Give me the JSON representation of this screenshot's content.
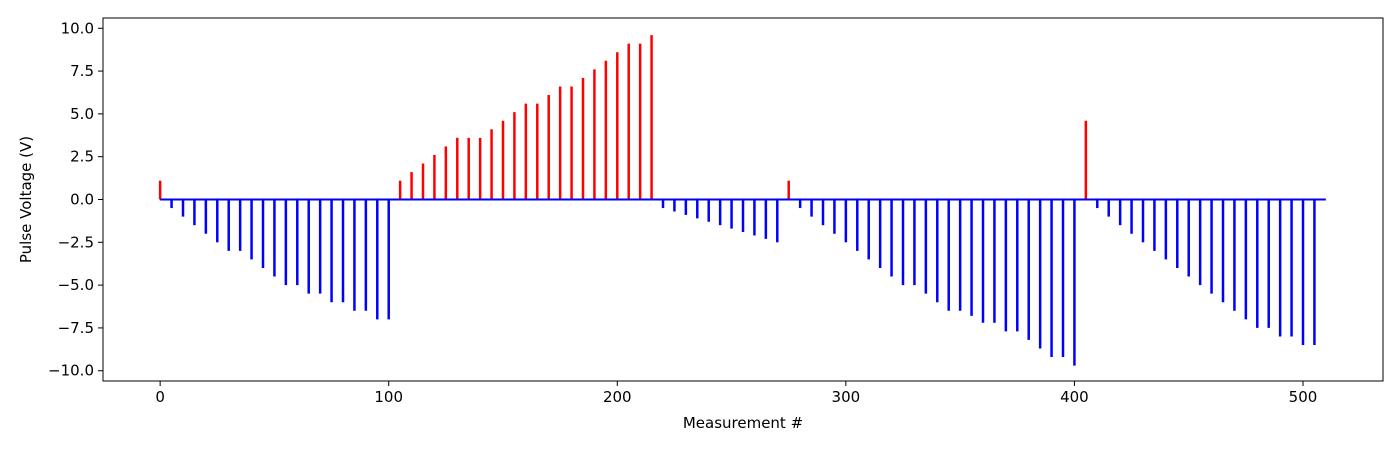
{
  "chart_data": {
    "type": "bar",
    "title": "",
    "xlabel": "Measurement #",
    "ylabel": "Pulse Voltage (V)",
    "xlim": [
      -25,
      535
    ],
    "ylim": [
      -10.6,
      10.6
    ],
    "xticks": [
      0,
      100,
      200,
      300,
      400,
      500
    ],
    "xtick_labels": [
      "0",
      "100",
      "200",
      "300",
      "400",
      "500"
    ],
    "yticks": [
      10.0,
      7.5,
      5.0,
      2.5,
      0.0,
      -2.5,
      -5.0,
      -7.5,
      -10.0
    ],
    "ytick_labels": [
      "10.0",
      "7.5",
      "5.0",
      "2.5",
      "0.0",
      "−2.5",
      "−5.0",
      "−7.5",
      "−10.0"
    ],
    "grid": false,
    "legend": "none",
    "baseline": {
      "from": 0,
      "to": 510,
      "color": "#0000ff"
    },
    "colors": {
      "positive": "#ff0000",
      "negative": "#0000ff"
    },
    "series": [
      {
        "color": "#ff0000",
        "x": [
          0,
          105,
          110,
          115,
          120,
          125,
          130,
          135,
          140,
          145,
          150,
          155,
          160,
          165,
          170,
          175,
          180,
          185,
          190,
          195,
          200,
          205,
          210,
          215,
          275,
          405
        ],
        "values": [
          1.1,
          1.1,
          1.6,
          2.1,
          2.6,
          3.1,
          3.6,
          3.6,
          3.6,
          4.1,
          4.6,
          5.1,
          5.6,
          5.6,
          6.1,
          6.6,
          6.6,
          7.1,
          7.6,
          8.1,
          8.6,
          9.1,
          9.1,
          9.6,
          1.1,
          4.6
        ]
      },
      {
        "color": "#0000ff",
        "x": [
          5,
          10,
          15,
          20,
          25,
          30,
          35,
          40,
          45,
          50,
          55,
          60,
          65,
          70,
          75,
          80,
          85,
          90,
          95,
          100,
          220,
          225,
          230,
          235,
          240,
          245,
          250,
          255,
          260,
          265,
          270,
          280,
          285,
          290,
          295,
          300,
          305,
          310,
          315,
          320,
          325,
          330,
          335,
          340,
          345,
          350,
          355,
          360,
          365,
          370,
          375,
          380,
          385,
          390,
          395,
          400,
          410,
          415,
          420,
          425,
          430,
          435,
          440,
          445,
          450,
          455,
          460,
          465,
          470,
          475,
          480,
          485,
          490,
          495,
          500,
          505
        ],
        "values": [
          -0.5,
          -1.0,
          -1.5,
          -2.0,
          -2.5,
          -3.0,
          -3.0,
          -3.5,
          -4.0,
          -4.5,
          -5.0,
          -5.0,
          -5.5,
          -5.5,
          -6.0,
          -6.0,
          -6.5,
          -6.5,
          -7.0,
          -7.0,
          -0.5,
          -0.7,
          -0.9,
          -1.1,
          -1.3,
          -1.5,
          -1.7,
          -1.9,
          -2.1,
          -2.3,
          -2.5,
          -0.5,
          -1.0,
          -1.5,
          -2.0,
          -2.5,
          -3.0,
          -3.5,
          -4.0,
          -4.5,
          -5.0,
          -5.0,
          -5.5,
          -6.0,
          -6.5,
          -6.5,
          -6.8,
          -7.2,
          -7.2,
          -7.7,
          -7.7,
          -8.2,
          -8.7,
          -9.2,
          -9.2,
          -9.7,
          -0.5,
          -1.0,
          -1.5,
          -2.0,
          -2.5,
          -3.0,
          -3.5,
          -4.0,
          -4.5,
          -5.0,
          -5.5,
          -6.0,
          -6.5,
          -7.0,
          -7.5,
          -7.5,
          -8.0,
          -8.0,
          -8.5,
          -8.5
        ]
      }
    ]
  }
}
